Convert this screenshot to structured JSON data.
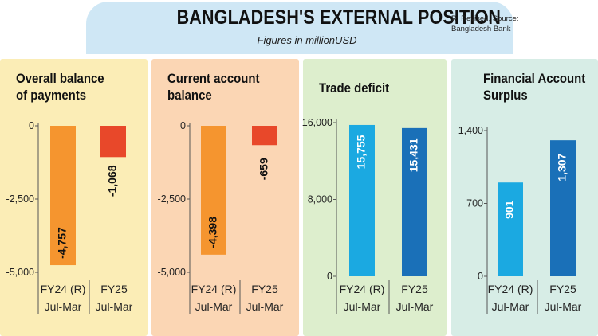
{
  "header": {
    "title": "BANGLADESH'S EXTERNAL POSITION",
    "subtitle": "Figures in millionUSD",
    "note_bold": "R: Revised, Source:",
    "note_source": "Bangladesh Bank"
  },
  "colors": {
    "header_bg": "#cfe7f5",
    "panel_yellow": "#fbedb6",
    "panel_peach": "#fbd6b4",
    "panel_green": "#ddeecd",
    "panel_mint": "#d7ede6",
    "orange_bar": "#f5952f",
    "red_bar": "#e8482a",
    "light_blue_bar": "#1ba9e1",
    "dark_blue_bar": "#1a70b8"
  },
  "chart_data": [
    {
      "type": "bar",
      "title": "Overall balance of payments",
      "title_lines": [
        "Overall balance",
        "of payments"
      ],
      "categories": [
        "FY24 (R)|Jul-Mar",
        "FY25|Jul-Mar"
      ],
      "category_lines": [
        [
          "FY24 (R)",
          "Jul-Mar"
        ],
        [
          "FY25",
          "Jul-Mar"
        ]
      ],
      "values": [
        -4757,
        -1068
      ],
      "value_labels": [
        "-4,757",
        "-1,068"
      ],
      "bar_colors": [
        "#f5952f",
        "#e8482a"
      ],
      "yticks": [
        0,
        -2500,
        -5000
      ],
      "ytick_labels": [
        "0",
        "-2,500",
        "-5,000"
      ],
      "ylim": [
        -5000,
        0
      ],
      "panel_color": "#fbedb6"
    },
    {
      "type": "bar",
      "title": "Current account balance",
      "title_lines": [
        "Current account",
        "balance"
      ],
      "categories": [
        "FY24 (R)|Jul-Mar",
        "FY25|Jul-Mar"
      ],
      "category_lines": [
        [
          "FY24 (R)",
          "Jul-Mar"
        ],
        [
          "FY25",
          "Jul-Mar"
        ]
      ],
      "values": [
        -4398,
        -659
      ],
      "value_labels": [
        "-4,398",
        "-659"
      ],
      "bar_colors": [
        "#f5952f",
        "#e8482a"
      ],
      "yticks": [
        0,
        -2500,
        -5000
      ],
      "ytick_labels": [
        "0",
        "-2,500",
        "-5,000"
      ],
      "ylim": [
        -5000,
        0
      ],
      "panel_color": "#fbd6b4"
    },
    {
      "type": "bar",
      "title": "Trade deficit",
      "title_lines": [
        "Trade deficit"
      ],
      "categories": [
        "FY24 (R)|Jul-Mar",
        "FY25|Jul-Mar"
      ],
      "category_lines": [
        [
          "FY24 (R)",
          "Jul-Mar"
        ],
        [
          "FY25",
          "Jul-Mar"
        ]
      ],
      "values": [
        15755,
        15431
      ],
      "value_labels": [
        "15,755",
        "15,431"
      ],
      "bar_colors": [
        "#1ba9e1",
        "#1a70b8"
      ],
      "yticks": [
        0,
        8000,
        16000
      ],
      "ytick_labels": [
        "0",
        "8,000",
        "16,000"
      ],
      "ylim": [
        0,
        16000
      ],
      "panel_color": "#ddeecd"
    },
    {
      "type": "bar",
      "title": "Financial Account Surplus",
      "title_lines": [
        "Financial Account",
        "Surplus"
      ],
      "categories": [
        "FY24 (R)|Jul-Mar",
        "FY25|Jul-Mar"
      ],
      "category_lines": [
        [
          "FY24 (R)",
          "Jul-Mar"
        ],
        [
          "FY25",
          "Jul-Mar"
        ]
      ],
      "values": [
        901,
        1307
      ],
      "value_labels": [
        "901",
        "1,307"
      ],
      "bar_colors": [
        "#1ba9e1",
        "#1a70b8"
      ],
      "yticks": [
        0,
        700,
        1400
      ],
      "ytick_labels": [
        "0",
        "700",
        "1,400"
      ],
      "ylim": [
        0,
        1400
      ],
      "panel_color": "#d7ede6"
    }
  ]
}
